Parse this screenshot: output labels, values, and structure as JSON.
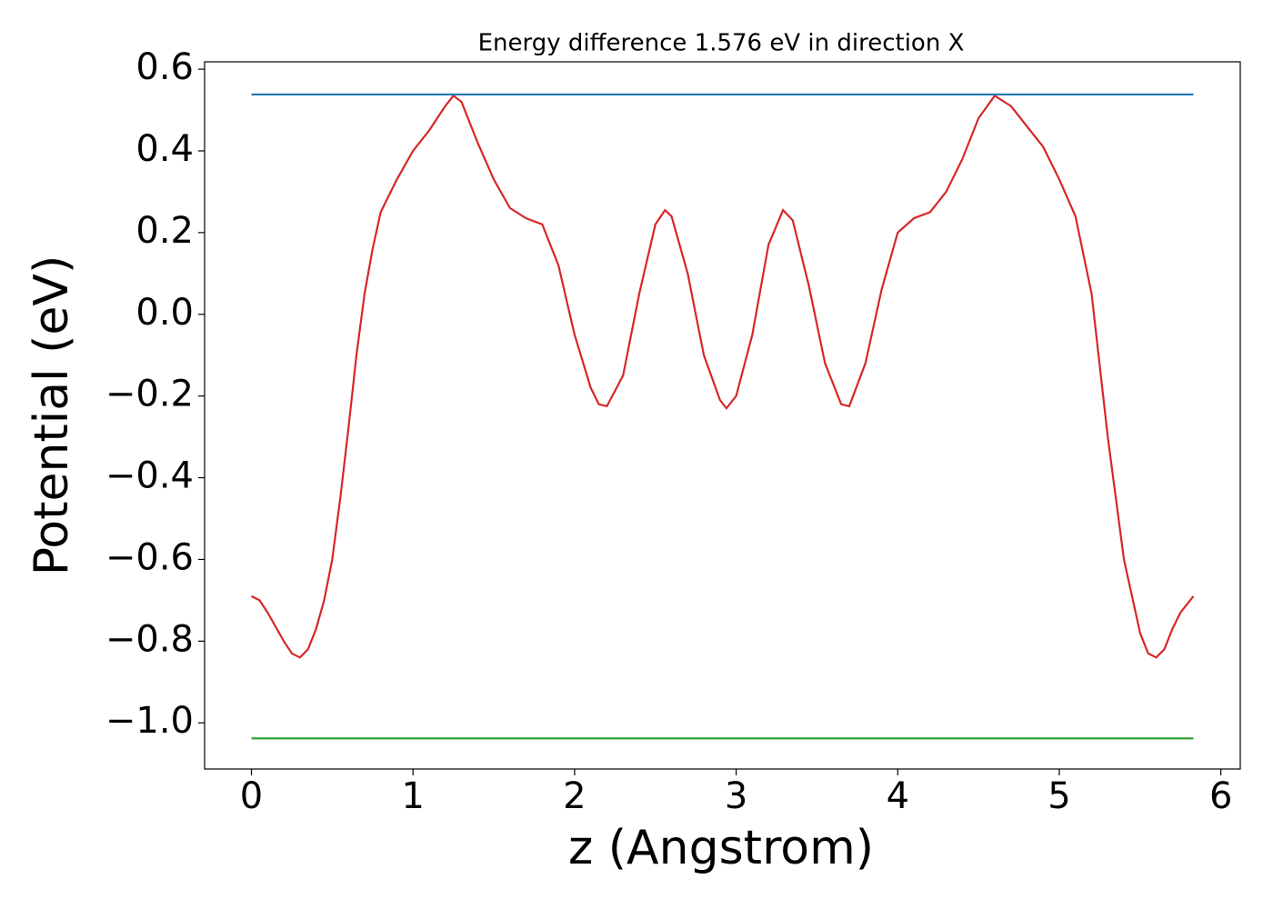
{
  "chart_data": {
    "type": "line",
    "title": "Energy difference 1.576 eV in direction X",
    "x_label": "z (Angstrom)",
    "y_label": "Potential (eV)",
    "xlim": [
      -0.29,
      6.12
    ],
    "ylim": [
      -1.113,
      0.618
    ],
    "xticks": [
      0,
      1,
      2,
      3,
      4,
      5,
      6
    ],
    "yticks": [
      {
        "value": 0.6,
        "label": "0.6"
      },
      {
        "value": 0.4,
        "label": "0.4"
      },
      {
        "value": 0.2,
        "label": "0.2"
      },
      {
        "value": 0.0,
        "label": "0.0"
      },
      {
        "value": -0.2,
        "label": "−0.2"
      },
      {
        "value": -0.4,
        "label": "−0.4"
      },
      {
        "value": -0.6,
        "label": "−0.6"
      },
      {
        "value": -0.8,
        "label": "−0.8"
      },
      {
        "value": -1.0,
        "label": "−1.0"
      }
    ],
    "grid": false,
    "series": [
      {
        "color": "#d62728",
        "x": [
          0,
          0.05,
          0.1,
          0.2,
          0.25,
          0.3,
          0.35,
          0.4,
          0.45,
          0.5,
          0.55,
          0.6,
          0.65,
          0.7,
          0.75,
          0.8,
          0.9,
          1.0,
          1.1,
          1.2,
          1.25,
          1.3,
          1.4,
          1.5,
          1.6,
          1.7,
          1.8,
          1.9,
          2.0,
          2.1,
          2.15,
          2.2,
          2.3,
          2.4,
          2.5,
          2.56,
          2.6,
          2.7,
          2.8,
          2.9,
          2.94,
          3.0,
          3.1,
          3.2,
          3.29,
          3.35,
          3.45,
          3.55,
          3.65,
          3.7,
          3.8,
          3.9,
          4.0,
          4.1,
          4.2,
          4.3,
          4.4,
          4.5,
          4.6,
          4.7,
          4.8,
          4.9,
          5.0,
          5.1,
          5.2,
          5.3,
          5.4,
          5.5,
          5.55,
          5.6,
          5.65,
          5.7,
          5.75,
          5.83
        ],
        "values": [
          -0.69,
          -0.7,
          -0.73,
          -0.8,
          -0.83,
          -0.84,
          -0.82,
          -0.77,
          -0.7,
          -0.6,
          -0.45,
          -0.28,
          -0.1,
          0.05,
          0.16,
          0.25,
          0.33,
          0.4,
          0.45,
          0.51,
          0.535,
          0.52,
          0.42,
          0.33,
          0.26,
          0.235,
          0.22,
          0.12,
          -0.05,
          -0.18,
          -0.22,
          -0.225,
          -0.15,
          0.05,
          0.22,
          0.255,
          0.24,
          0.1,
          -0.1,
          -0.21,
          -0.23,
          -0.2,
          -0.05,
          0.17,
          0.255,
          0.23,
          0.07,
          -0.12,
          -0.22,
          -0.225,
          -0.12,
          0.06,
          0.2,
          0.235,
          0.25,
          0.3,
          0.38,
          0.48,
          0.535,
          0.51,
          0.46,
          0.41,
          0.33,
          0.24,
          0.05,
          -0.3,
          -0.6,
          -0.78,
          -0.83,
          -0.84,
          -0.82,
          -0.77,
          -0.73,
          -0.69
        ]
      },
      {
        "color": "#1f77b4",
        "x": [
          0,
          5.83
        ],
        "values": [
          0.538,
          0.538
        ]
      },
      {
        "color": "#2ca02c",
        "x": [
          0,
          5.83
        ],
        "values": [
          -1.038,
          -1.038
        ]
      }
    ]
  }
}
